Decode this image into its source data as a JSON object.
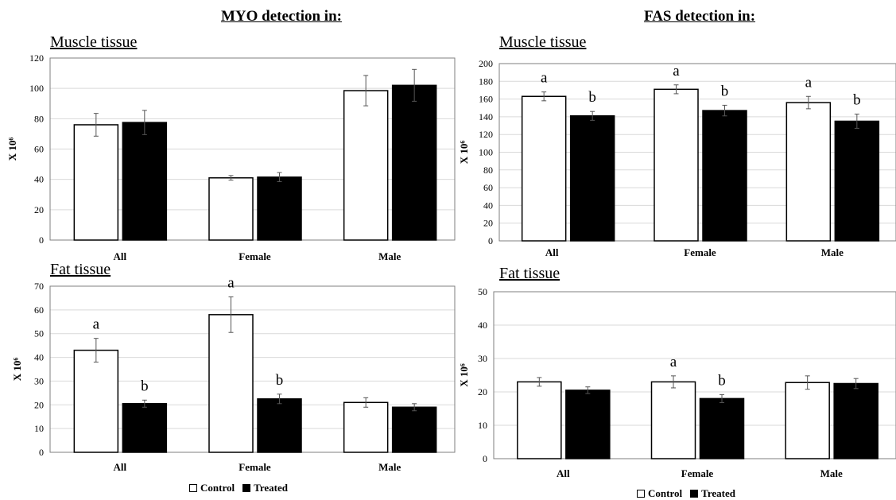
{
  "headings": {
    "myo": "MYO detection in:",
    "fas": "FAS detection in:"
  },
  "legend": {
    "control": "Control",
    "treated": "Treated",
    "control_color": "#ffffff",
    "treated_color": "#000000"
  },
  "chart_data": [
    {
      "type": "bar",
      "title": "Muscle tissue",
      "ylabel": "X 10⁶",
      "categories": [
        "All",
        "Female",
        "Male"
      ],
      "ylim": [
        0,
        120
      ],
      "yticks": [
        0,
        20,
        40,
        60,
        80,
        100,
        120
      ],
      "series": [
        {
          "name": "Control",
          "values": [
            76,
            41,
            98.5
          ],
          "errors": [
            7.5,
            1.5,
            10
          ]
        },
        {
          "name": "Treated",
          "values": [
            77.5,
            41.5,
            102
          ],
          "errors": [
            8,
            3,
            10.5
          ]
        }
      ],
      "annotations": [
        [
          "",
          ""
        ],
        [
          "",
          ""
        ],
        [
          "",
          ""
        ]
      ]
    },
    {
      "type": "bar",
      "title": "Muscle tissue",
      "ylabel": "X 10⁶",
      "categories": [
        "All",
        "Female",
        "Male"
      ],
      "ylim": [
        0,
        200
      ],
      "yticks": [
        0,
        20,
        40,
        60,
        80,
        100,
        120,
        140,
        160,
        180,
        200
      ],
      "series": [
        {
          "name": "Control",
          "values": [
            163,
            171,
            156
          ],
          "errors": [
            5,
            5,
            7
          ]
        },
        {
          "name": "Treated",
          "values": [
            141,
            147,
            135
          ],
          "errors": [
            5,
            6,
            8
          ]
        }
      ],
      "annotations": [
        [
          "a",
          "b"
        ],
        [
          "a",
          "b"
        ],
        [
          "a",
          "b"
        ]
      ]
    },
    {
      "type": "bar",
      "title": "Fat tissue",
      "ylabel": "X 10⁶",
      "categories": [
        "All",
        "Female",
        "Male"
      ],
      "ylim": [
        0,
        70
      ],
      "yticks": [
        0,
        10,
        20,
        30,
        40,
        50,
        60,
        70
      ],
      "series": [
        {
          "name": "Control",
          "values": [
            43,
            58,
            21
          ],
          "errors": [
            5,
            7.5,
            2
          ]
        },
        {
          "name": "Treated",
          "values": [
            20.5,
            22.5,
            19
          ],
          "errors": [
            1.5,
            2,
            1.5
          ]
        }
      ],
      "annotations": [
        [
          "a",
          "b"
        ],
        [
          "a",
          "b"
        ],
        [
          "",
          ""
        ]
      ]
    },
    {
      "type": "bar",
      "title": "Fat tissue",
      "ylabel": "X 10⁶",
      "categories": [
        "All",
        "Female",
        "Male"
      ],
      "ylim": [
        0,
        50
      ],
      "yticks": [
        0,
        10,
        20,
        30,
        40,
        50
      ],
      "series": [
        {
          "name": "Control",
          "values": [
            23,
            23,
            22.8
          ],
          "errors": [
            1.3,
            1.8,
            2
          ]
        },
        {
          "name": "Treated",
          "values": [
            20.5,
            18,
            22.5
          ],
          "errors": [
            1,
            1.2,
            1.5
          ]
        }
      ],
      "annotations": [
        [
          "",
          ""
        ],
        [
          "a",
          "b"
        ],
        [
          "",
          ""
        ]
      ]
    }
  ]
}
